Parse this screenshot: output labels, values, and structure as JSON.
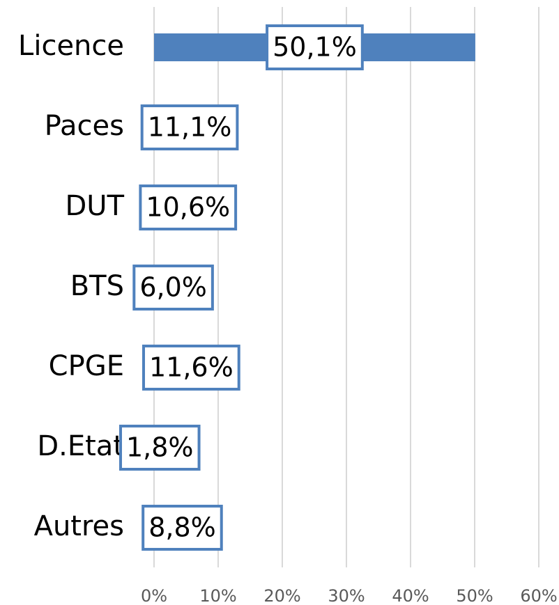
{
  "chart_data": {
    "type": "bar",
    "orientation": "horizontal",
    "categories": [
      "Licence",
      "Paces",
      "DUT",
      "BTS",
      "CPGE",
      "D.Etat",
      "Autres"
    ],
    "values": [
      50.1,
      11.1,
      10.6,
      6.0,
      11.6,
      1.8,
      8.8
    ],
    "value_labels": [
      "50,1%",
      "11,1%",
      "10,6%",
      "6,0%",
      "11,6%",
      "1,8%",
      "8,8%"
    ],
    "color": "#4f81bd",
    "xlim": [
      0,
      60
    ],
    "xticks": [
      {
        "value": 0,
        "label": "0%"
      },
      {
        "value": 10,
        "label": "10%"
      },
      {
        "value": 20,
        "label": "20%"
      },
      {
        "value": 30,
        "label": "30%"
      },
      {
        "value": 40,
        "label": "40%"
      },
      {
        "value": 50,
        "label": "50%"
      },
      {
        "value": 60,
        "label": "60%"
      }
    ],
    "grid": true
  }
}
